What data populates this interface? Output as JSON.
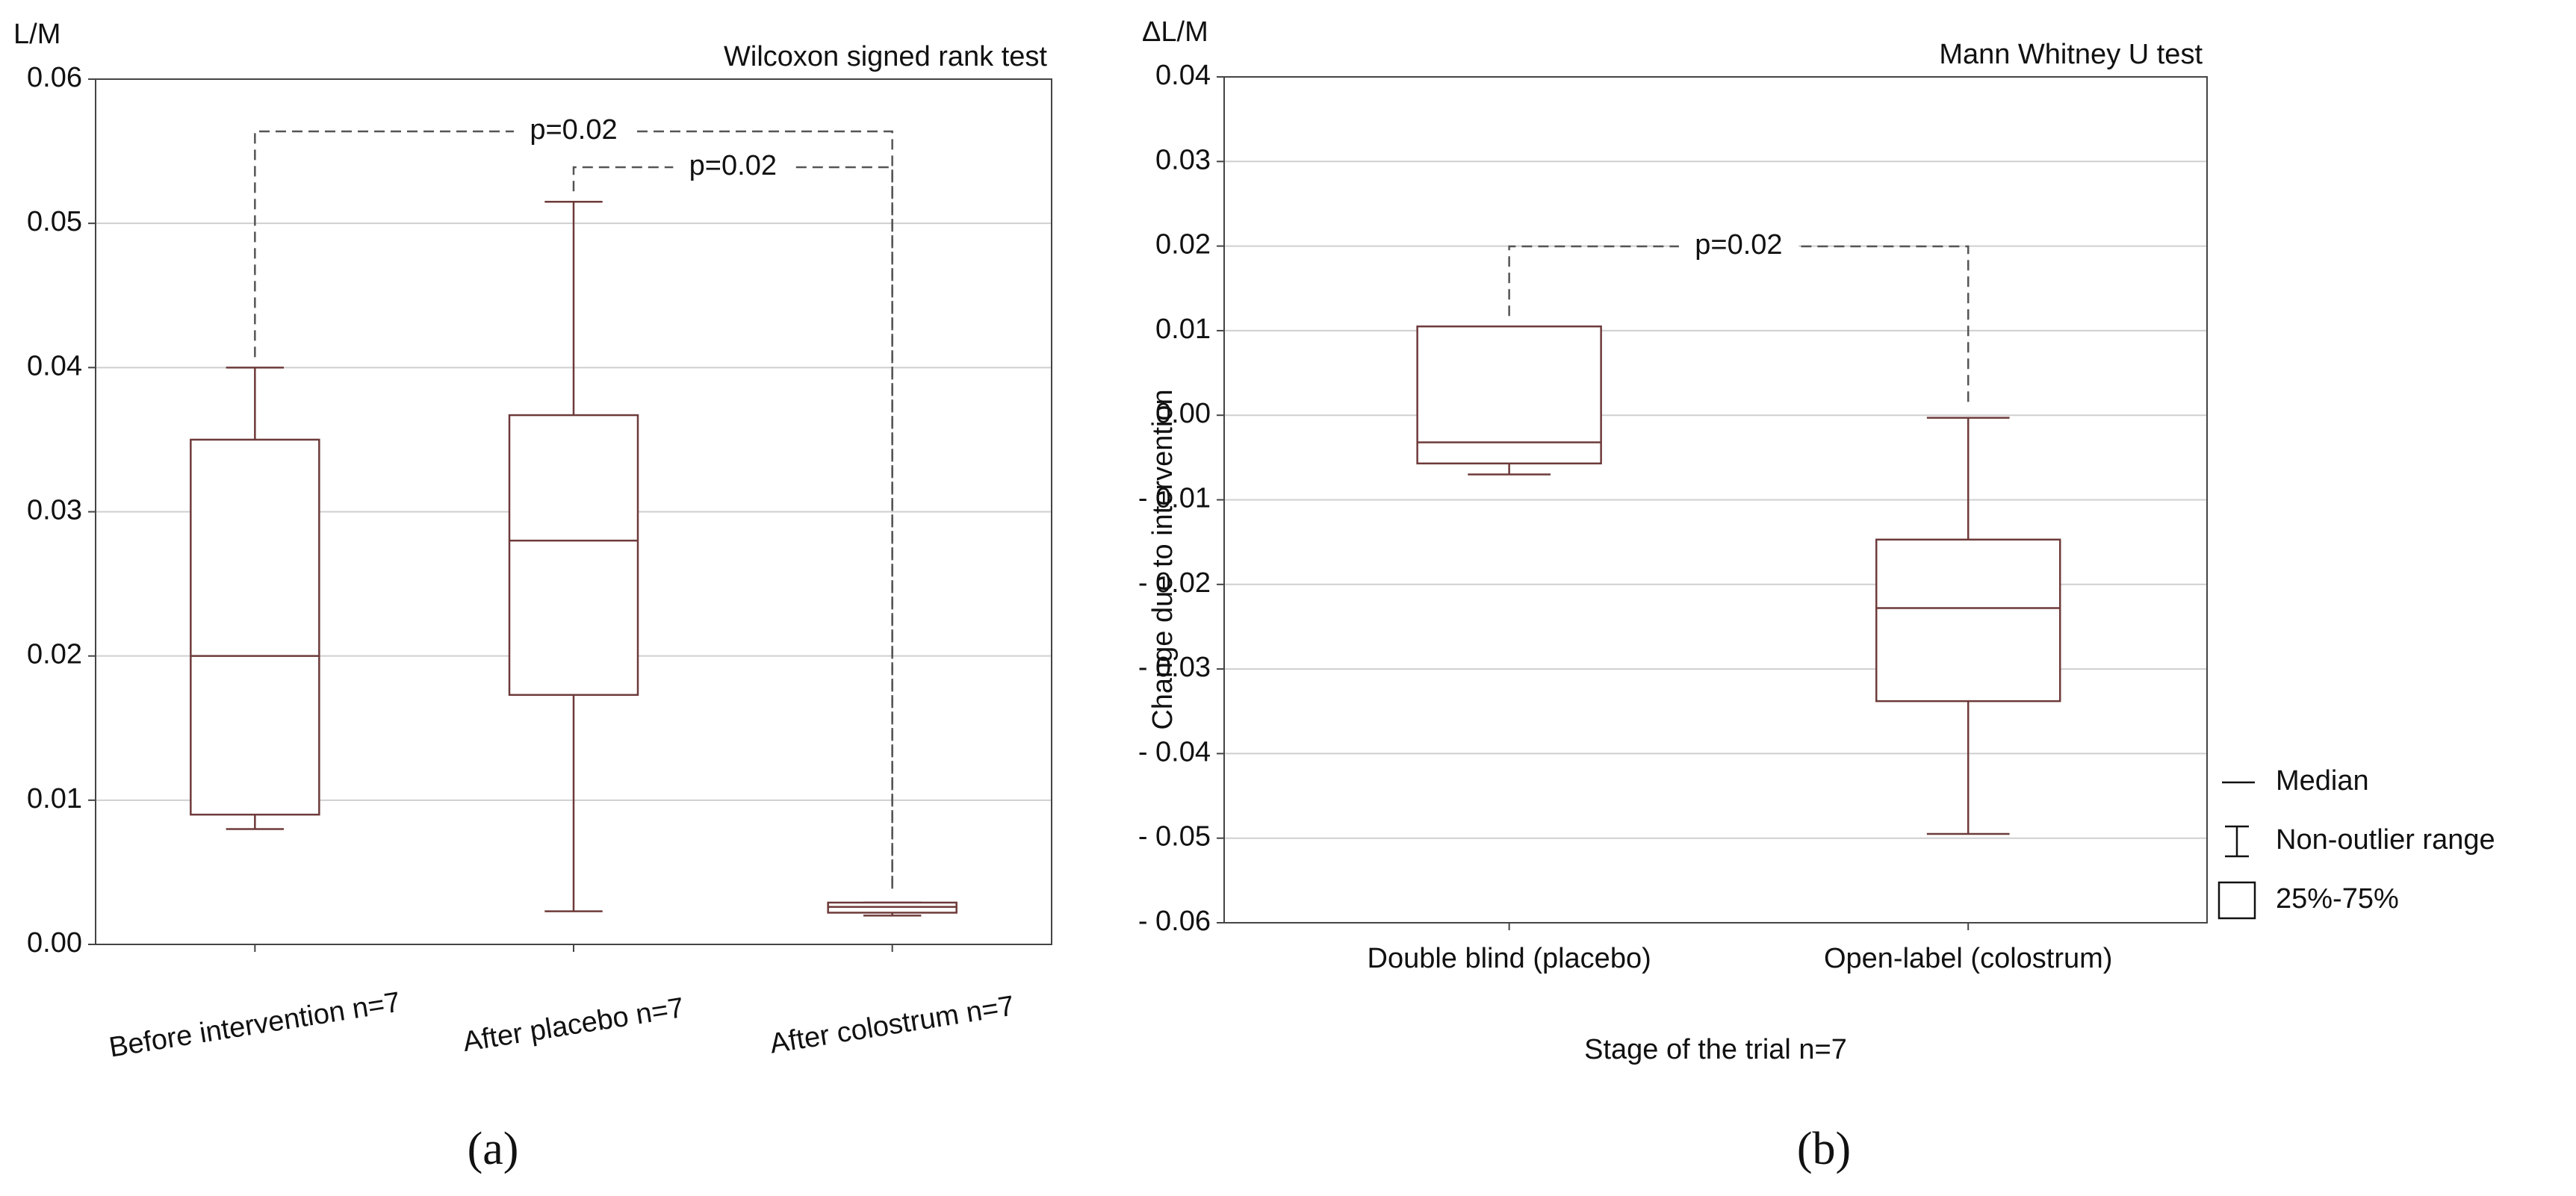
{
  "chart_data": [
    {
      "type": "box",
      "panel_label": "(a)",
      "unit_label": "L/M",
      "title": "Wilcoxon signed rank test",
      "color": "#6e3a3a",
      "grid": true,
      "categories": [
        "Before intervention n=7",
        "After placebo n=7",
        "After colostrum n=7"
      ],
      "boxes": [
        {
          "min": 0.008,
          "q1": 0.009,
          "median": 0.02,
          "q3": 0.035,
          "max": 0.04
        },
        {
          "min": 0.0023,
          "q1": 0.0173,
          "median": 0.028,
          "q3": 0.0367,
          "max": 0.0515
        },
        {
          "min": 0.002,
          "q1": 0.0022,
          "median": 0.0026,
          "q3": 0.0029,
          "max": 0.0029
        }
      ],
      "ylim": [
        0,
        0.06
      ],
      "yticks": [
        {
          "value": 0,
          "label": "0.00"
        },
        0.01,
        0.02,
        0.03,
        0.04,
        0.05,
        0.06
      ],
      "annotations": [
        {
          "text": "p=0.02",
          "between": [
            "Before intervention n=7",
            "After colostrum n=7"
          ]
        },
        {
          "text": "p=0.02",
          "between": [
            "After placebo n=7",
            "After colostrum n=7"
          ]
        }
      ]
    },
    {
      "type": "box",
      "panel_label": "(b)",
      "unit_label": "ΔL/M",
      "title": "Mann Whitney U test",
      "color": "#6e3a3a",
      "grid": true,
      "y_label": "Change due to intervention",
      "x_label": "Stage of the trial n=7",
      "categories": [
        "Double blind (placebo)",
        "Open-label (colostrum)"
      ],
      "boxes": [
        {
          "min": -0.007,
          "q1": -0.0057,
          "median": -0.0032,
          "q3": 0.0105,
          "max": 0.0105
        },
        {
          "min": -0.0495,
          "q1": -0.0338,
          "median": -0.0228,
          "q3": -0.0147,
          "max": -0.0003
        }
      ],
      "ylim": [
        -0.06,
        0.04
      ],
      "yticks": [
        {
          "value": -0.06,
          "label": "- 0.06"
        },
        {
          "value": -0.05,
          "label": "- 0.05"
        },
        {
          "value": -0.04,
          "label": "- 0.04"
        },
        {
          "value": -0.03,
          "label": "- 0.03"
        },
        {
          "value": -0.02,
          "label": "- 0.02"
        },
        {
          "value": -0.01,
          "label": "- 0.01"
        },
        {
          "value": 0,
          "label": "0.00"
        },
        0.01,
        0.02,
        0.03,
        0.04
      ],
      "annotations": [
        {
          "text": "p=0.02",
          "between": [
            "Double blind (placebo)",
            "Open-label (colostrum)"
          ]
        }
      ],
      "legend": [
        "Median",
        "Non-outlier range",
        "25%-75%"
      ]
    }
  ]
}
